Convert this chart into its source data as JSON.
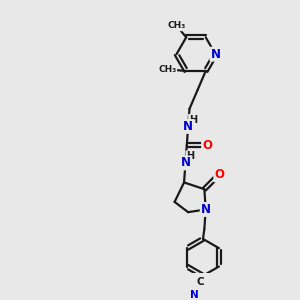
{
  "bg_color": "#e8e8e8",
  "bond_color": "#1a1a1a",
  "N_color": "#0000cd",
  "O_color": "#ff0000",
  "C_color": "#1a1a1a",
  "line_width": 1.6,
  "figsize": [
    3.0,
    3.0
  ],
  "dpi": 100,
  "xlim": [
    0,
    10
  ],
  "ylim": [
    0,
    10
  ]
}
